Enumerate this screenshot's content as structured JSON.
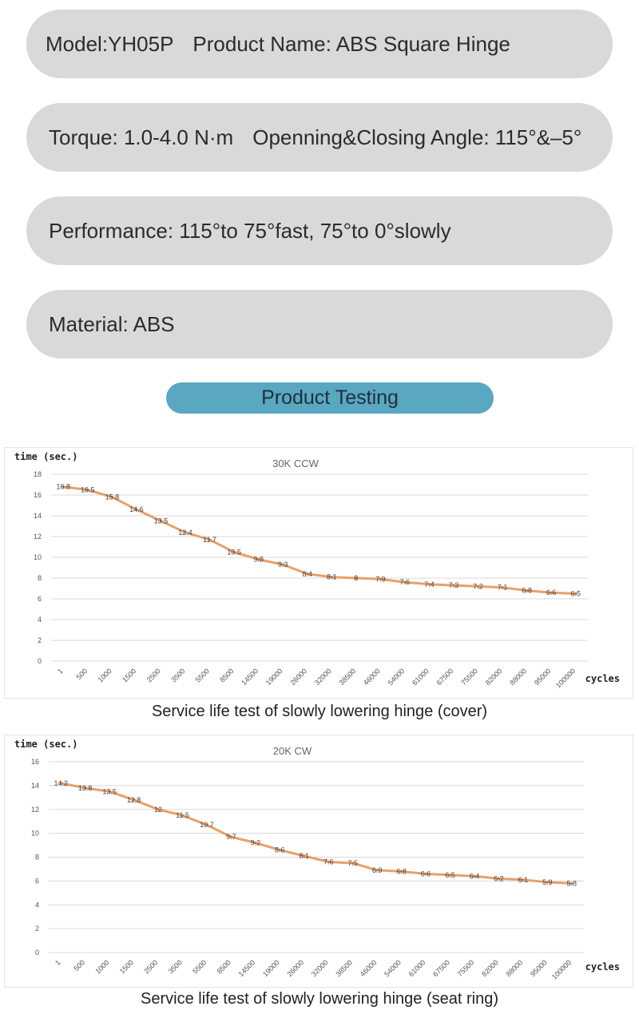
{
  "specs": {
    "model": "Model:YH05P",
    "product_name": "Product Name: ABS Square Hinge",
    "torque": "Torque: 1.0-4.0 N·m",
    "angle": "Openning&Closing Angle: 115°&–5°",
    "performance": "Performance: 115°to 75°fast, 75°to 0°slowly",
    "material": "Material: ABS"
  },
  "section_title": "Product Testing",
  "colors": {
    "pill_bg": "#d9d9d9",
    "banner_bg": "#5aa7c1",
    "line": "#e8a06a",
    "grid": "#d9d9d9"
  },
  "chart_data": [
    {
      "type": "line",
      "title": "30K CCW",
      "ylabel": "time  (sec.)",
      "xlabel": "cycles",
      "ylim": [
        0,
        18
      ],
      "yticks": [
        0,
        2,
        4,
        6,
        8,
        10,
        12,
        14,
        16,
        18
      ],
      "categories": [
        "1",
        "500",
        "1000",
        "1500",
        "2500",
        "3500",
        "5500",
        "8500",
        "14500",
        "19000",
        "26000",
        "32000",
        "38500",
        "46000",
        "54000",
        "61000",
        "67500",
        "75500",
        "82000",
        "88000",
        "95000",
        "100000"
      ],
      "values": [
        16.8,
        16.5,
        15.8,
        14.6,
        13.5,
        12.4,
        11.7,
        10.5,
        9.8,
        9.3,
        8.4,
        8.1,
        8,
        7.9,
        7.6,
        7.4,
        7.3,
        7.2,
        7.1,
        6.8,
        6.6,
        6.5
      ],
      "labels": [
        "16.8",
        "16.5",
        "15.8",
        "14.6",
        "13.5",
        "12.4",
        "11.7",
        "10.5",
        "9.8",
        "9.3",
        "8.4",
        "8.1",
        "8",
        "7.9",
        "7.6",
        "7.4",
        "7.3",
        "7.2",
        "7.1",
        "6.8",
        "6.6",
        "6.5"
      ],
      "grid": true,
      "caption": "Service life test of slowly lowering hinge (cover)"
    },
    {
      "type": "line",
      "title": "20K CW",
      "ylabel": "time  (sec.)",
      "xlabel": "cycles",
      "ylim": [
        0,
        16
      ],
      "yticks": [
        0,
        2,
        4,
        6,
        8,
        10,
        12,
        14,
        16
      ],
      "categories": [
        "1",
        "500",
        "1000",
        "1500",
        "2500",
        "3500",
        "5500",
        "8500",
        "14500",
        "19000",
        "26000",
        "32000",
        "38500",
        "46000",
        "54000",
        "61000",
        "67500",
        "75500",
        "82000",
        "88000",
        "95000",
        "100000"
      ],
      "values": [
        14.2,
        13.8,
        13.5,
        12.8,
        12,
        11.5,
        10.7,
        9.7,
        9.2,
        8.6,
        8.1,
        7.6,
        7.5,
        6.9,
        6.8,
        6.6,
        6.5,
        6.4,
        6.2,
        6.1,
        5.9,
        5.8
      ],
      "labels": [
        "14.2",
        "13.8",
        "13.5",
        "12.8",
        "12",
        "11.5",
        "10.7",
        "9.7",
        "9.2",
        "8.6",
        "8.1",
        "7.6",
        "7.5",
        "6.9",
        "6.8",
        "6.6",
        "6.5",
        "6.4",
        "6.2",
        "6.1",
        "5.9",
        "5.8"
      ],
      "grid": true,
      "caption": "Service life test of slowly lowering hinge (seat ring)"
    }
  ]
}
